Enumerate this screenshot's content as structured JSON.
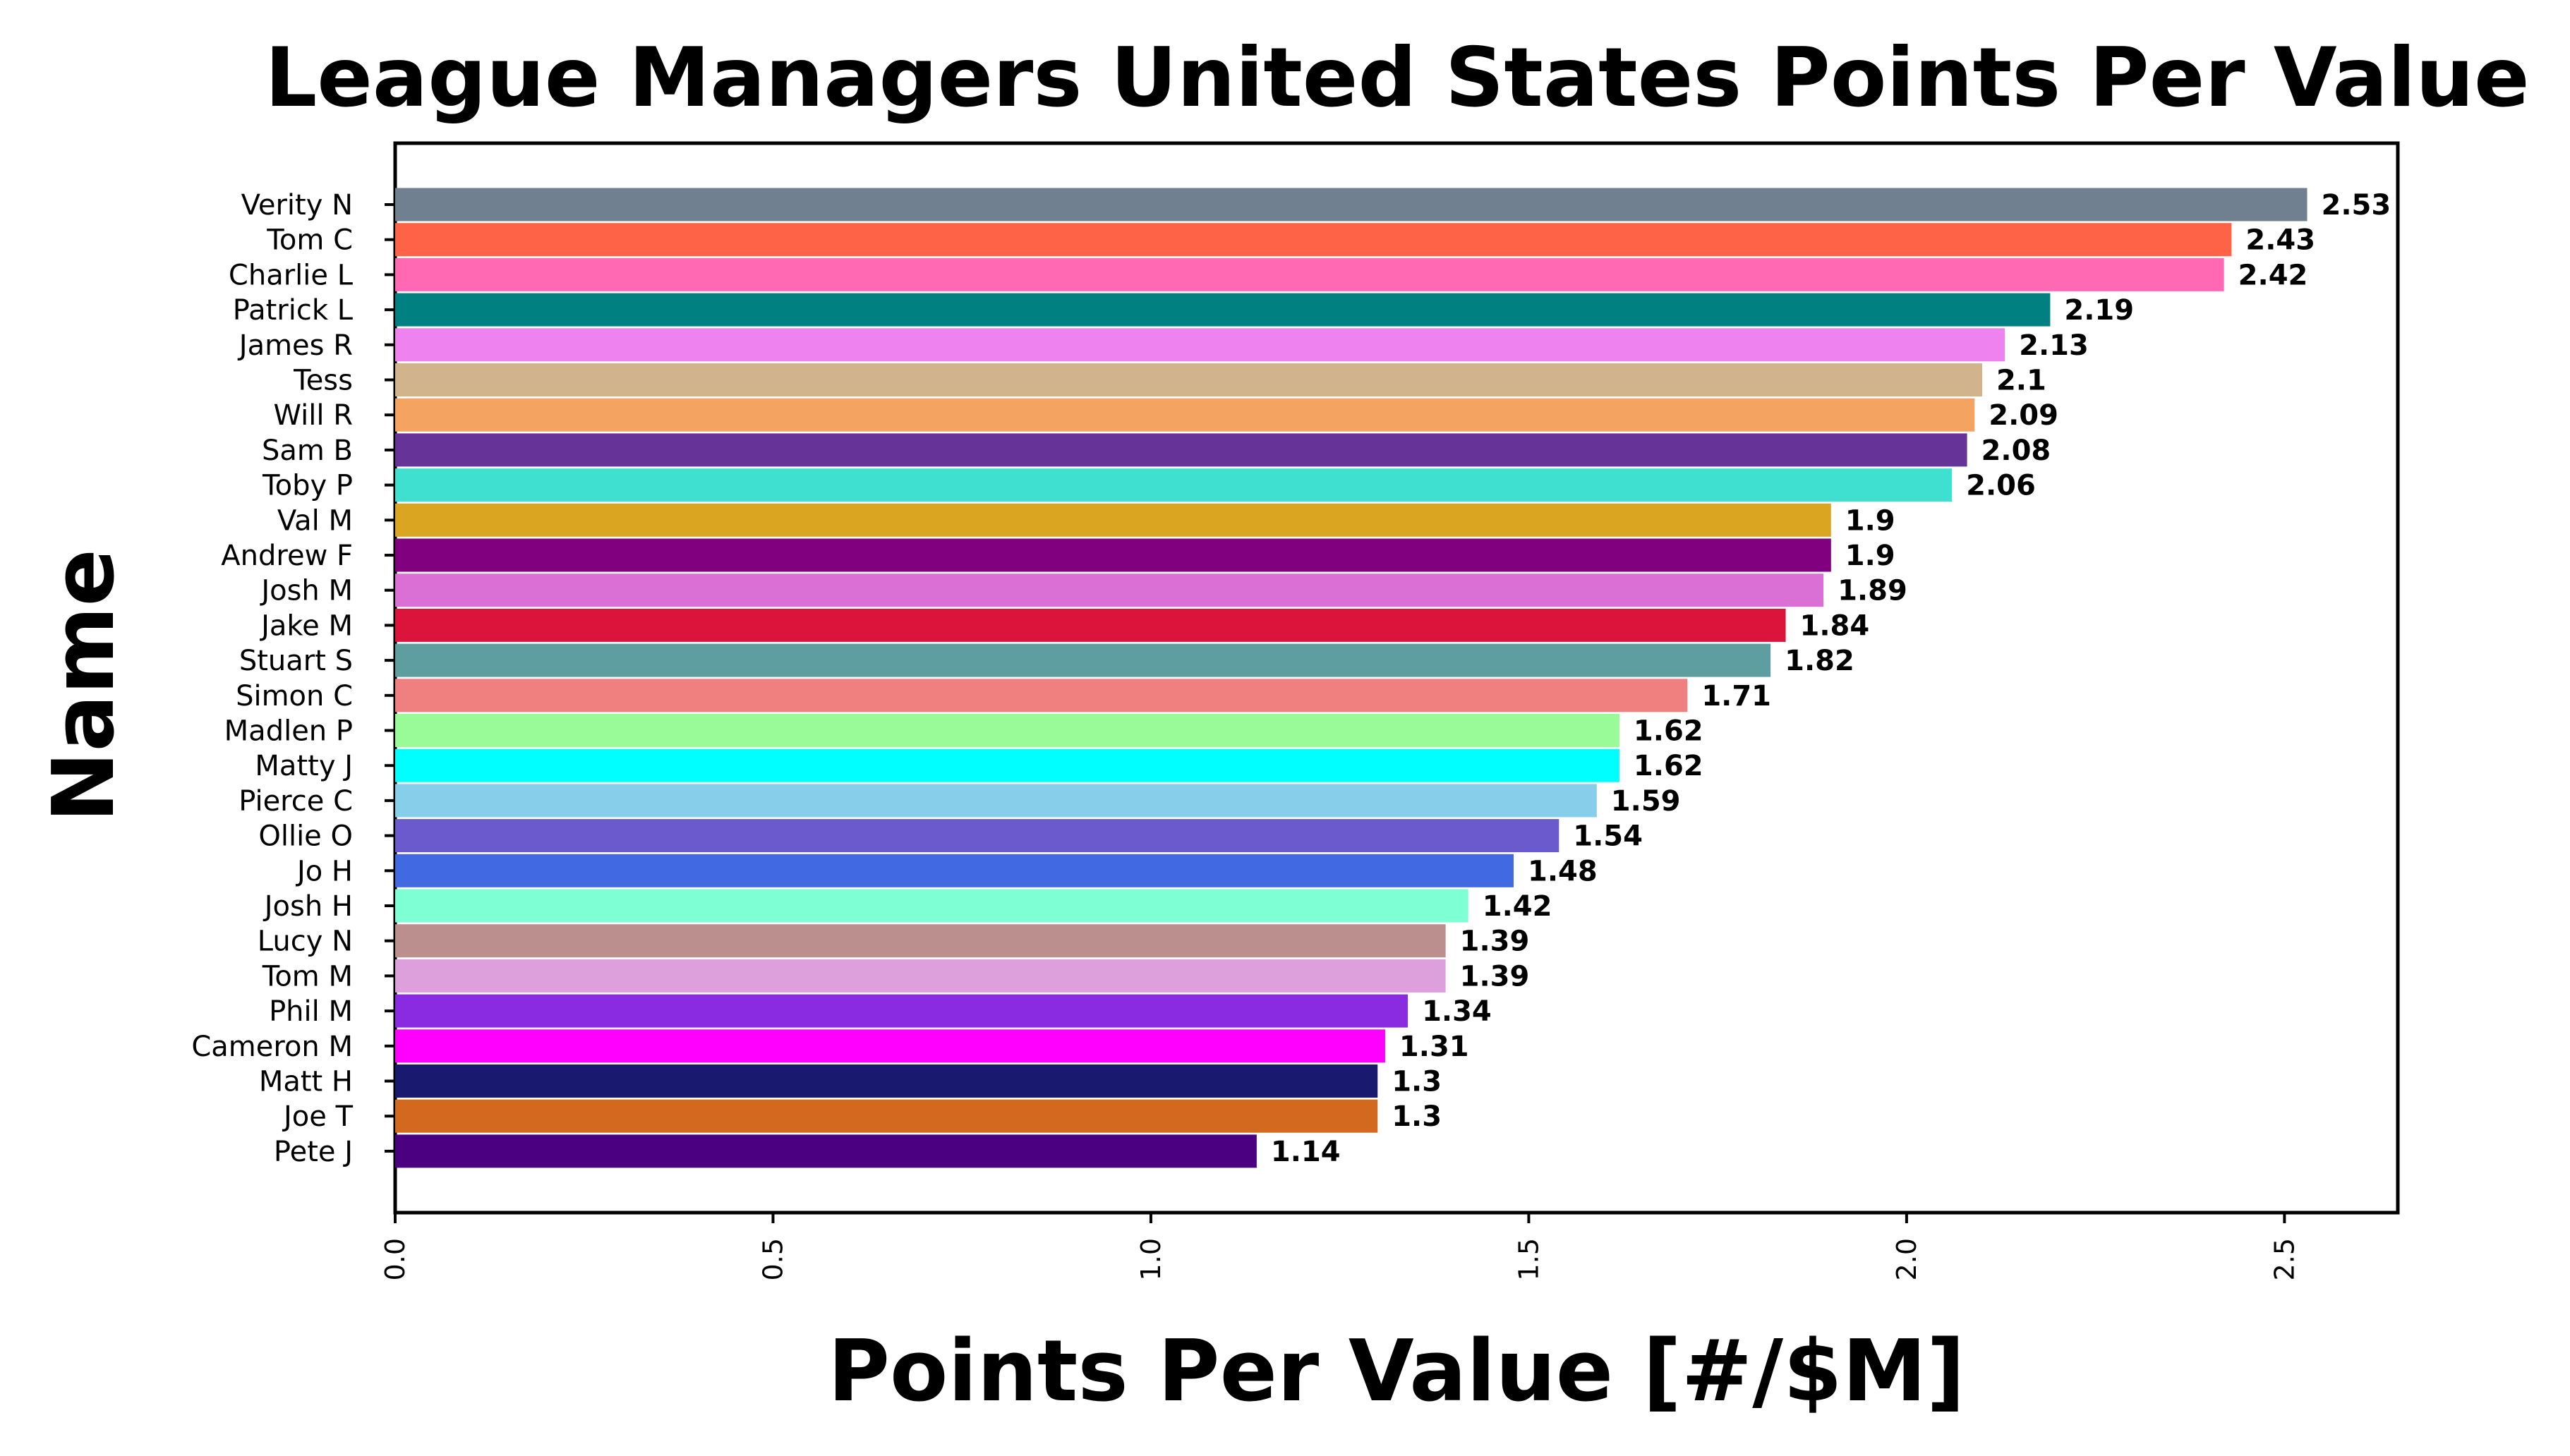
{
  "chart_data": {
    "type": "bar",
    "orientation": "horizontal",
    "title": "League Managers United States Points Per Value",
    "xlabel": "Points Per Value [#/$M]",
    "ylabel": "Name",
    "xlim": [
      0,
      2.65
    ],
    "xticks": [
      {
        "value": 0.0,
        "label": "0.0"
      },
      {
        "value": 0.5,
        "label": "0.5"
      },
      {
        "value": 1.0,
        "label": "1.0"
      },
      {
        "value": 1.5,
        "label": "1.5"
      },
      {
        "value": 2.0,
        "label": "2.0"
      },
      {
        "value": 2.5,
        "label": "2.5"
      }
    ],
    "grid": false,
    "bars": [
      {
        "name": "Verity N",
        "value": 2.53,
        "label": "2.53",
        "color": "#708090"
      },
      {
        "name": "Tom C",
        "value": 2.43,
        "label": "2.43",
        "color": "#FF6347"
      },
      {
        "name": "Charlie L",
        "value": 2.42,
        "label": "2.42",
        "color": "#FF69B4"
      },
      {
        "name": "Patrick L",
        "value": 2.19,
        "label": "2.19",
        "color": "#008080"
      },
      {
        "name": "James R",
        "value": 2.13,
        "label": "2.13",
        "color": "#EE82EE"
      },
      {
        "name": "Tess",
        "value": 2.1,
        "label": "2.1",
        "color": "#D2B48C"
      },
      {
        "name": "Will R",
        "value": 2.09,
        "label": "2.09",
        "color": "#F4A460"
      },
      {
        "name": "Sam B",
        "value": 2.08,
        "label": "2.08",
        "color": "#663399"
      },
      {
        "name": "Toby P",
        "value": 2.06,
        "label": "2.06",
        "color": "#40E0D0"
      },
      {
        "name": "Val M",
        "value": 1.9,
        "label": "1.9",
        "color": "#DAA520"
      },
      {
        "name": "Andrew F",
        "value": 1.9,
        "label": "1.9",
        "color": "#800080"
      },
      {
        "name": "Josh M",
        "value": 1.89,
        "label": "1.89",
        "color": "#DA70D6"
      },
      {
        "name": "Jake M",
        "value": 1.84,
        "label": "1.84",
        "color": "#DC143C"
      },
      {
        "name": "Stuart S",
        "value": 1.82,
        "label": "1.82",
        "color": "#5F9EA0"
      },
      {
        "name": "Simon C",
        "value": 1.71,
        "label": "1.71",
        "color": "#F08080"
      },
      {
        "name": "Madlen P",
        "value": 1.62,
        "label": "1.62",
        "color": "#98FB98"
      },
      {
        "name": "Matty J",
        "value": 1.62,
        "label": "1.62",
        "color": "#00FFFF"
      },
      {
        "name": "Pierce C",
        "value": 1.59,
        "label": "1.59",
        "color": "#87CEEB"
      },
      {
        "name": "Ollie O",
        "value": 1.54,
        "label": "1.54",
        "color": "#6A5ACD"
      },
      {
        "name": "Jo H",
        "value": 1.48,
        "label": "1.48",
        "color": "#4169E1"
      },
      {
        "name": "Josh H",
        "value": 1.42,
        "label": "1.42",
        "color": "#7FFFD4"
      },
      {
        "name": "Lucy N",
        "value": 1.39,
        "label": "1.39",
        "color": "#BC8F8F"
      },
      {
        "name": "Tom M",
        "value": 1.39,
        "label": "1.39",
        "color": "#DDA0DD"
      },
      {
        "name": "Phil M",
        "value": 1.34,
        "label": "1.34",
        "color": "#8A2BE2"
      },
      {
        "name": "Cameron M",
        "value": 1.31,
        "label": "1.31",
        "color": "#FF00FF"
      },
      {
        "name": "Matt H",
        "value": 1.3,
        "label": "1.3",
        "color": "#191970"
      },
      {
        "name": "Joe T",
        "value": 1.3,
        "label": "1.3",
        "color": "#D2691E"
      },
      {
        "name": "Pete J",
        "value": 1.14,
        "label": "1.14",
        "color": "#4B0082"
      }
    ]
  }
}
